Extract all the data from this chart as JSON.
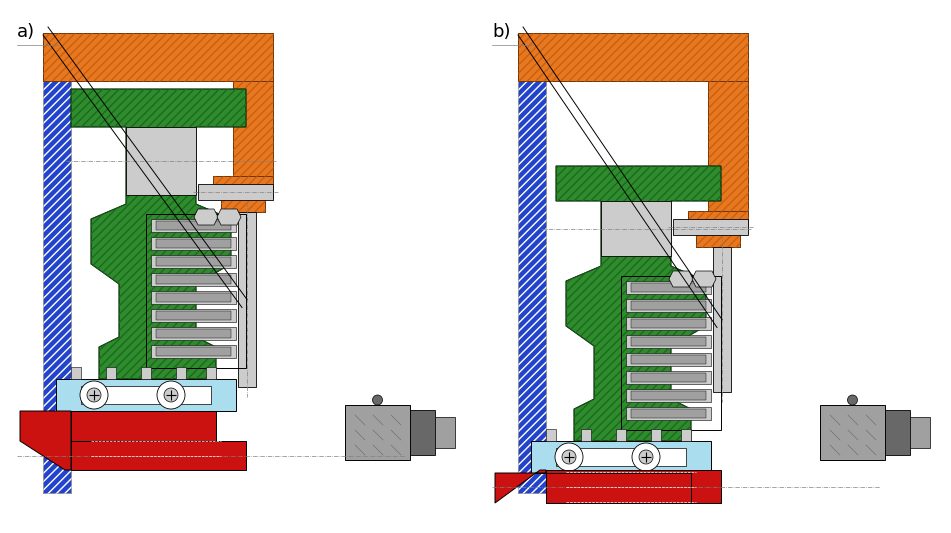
{
  "bg_color": "#ffffff",
  "orange": "#E87820",
  "orange_hatch": "#C86010",
  "blue": "#2244CC",
  "blue_hatch_color": "#ffffff",
  "green": "#2E8B2E",
  "green_hatch": "#1A6B1A",
  "red": "#CC1111",
  "gray_light": "#CCCCCC",
  "gray_mid": "#A0A0A0",
  "gray_dark": "#686868",
  "gray_vdark": "#505050",
  "cyan_light": "#AADDEE",
  "white": "#FFFFFF",
  "black": "#000000",
  "label_a": "a)",
  "label_b": "b)",
  "label_fontsize": 13
}
